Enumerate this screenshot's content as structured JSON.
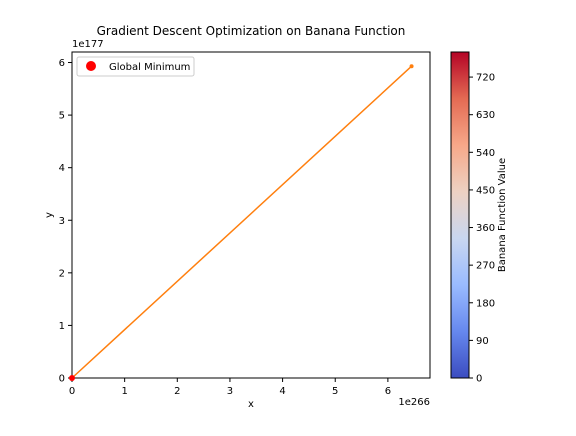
{
  "chart_data": {
    "type": "line",
    "title": "Gradient Descent Optimization on Banana Function",
    "xlabel": "x",
    "ylabel": "y",
    "x_offset_text": "1e266",
    "y_offset_text": "1e177",
    "x_scale_exponent": 266,
    "y_scale_exponent": 177,
    "xlim": [
      0,
      6.8
    ],
    "ylim": [
      0,
      6.2
    ],
    "xticks": [
      0,
      1,
      2,
      3,
      4,
      5,
      6
    ],
    "yticks": [
      0,
      1,
      2,
      3,
      4,
      5,
      6
    ],
    "grid": false,
    "series": [
      {
        "x": [
          0,
          6.45
        ],
        "y": [
          0,
          5.93
        ],
        "color": "#ff7f0e",
        "marker": "circle"
      }
    ],
    "scatter": [
      {
        "name": "Global Minimum",
        "x": [
          0
        ],
        "y": [
          0
        ],
        "color": "#ff0000"
      }
    ],
    "legend": {
      "position": "top-left",
      "entries": [
        {
          "label": "Global Minimum",
          "color": "#ff0000",
          "marker": "circle"
        }
      ]
    },
    "colorbar": {
      "label": "Banana Function Value",
      "colormap": "coolwarm",
      "range": [
        0,
        780
      ],
      "ticks": [
        0,
        90,
        180,
        270,
        360,
        450,
        540,
        630,
        720
      ],
      "colors": [
        "#3b4cc0",
        "#6688ee",
        "#9abbff",
        "#c9d7f0",
        "#edd1c2",
        "#f7a889",
        "#e36a53",
        "#b40426"
      ]
    }
  }
}
